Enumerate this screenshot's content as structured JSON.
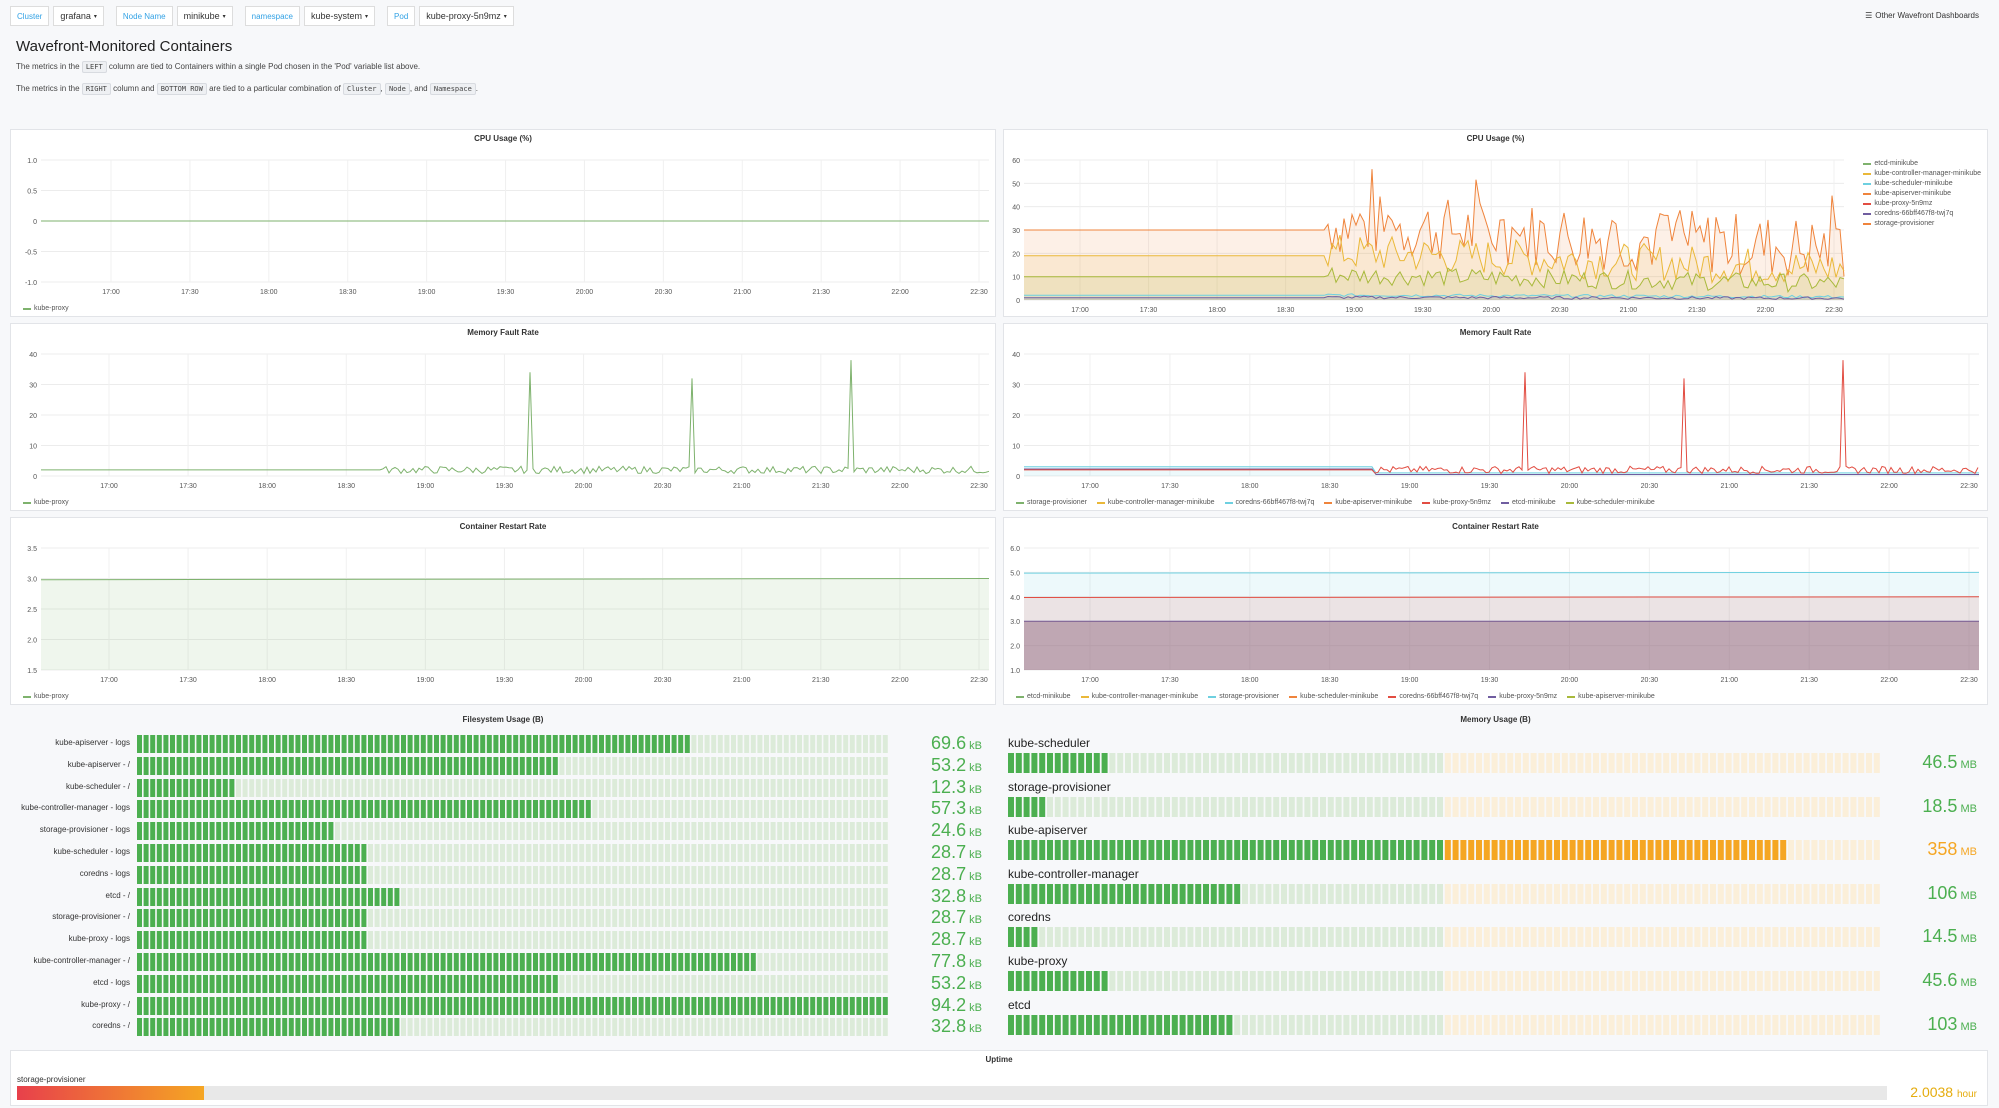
{
  "variables": [
    {
      "label": "Cluster",
      "value": "grafana"
    },
    {
      "label": "Node Name",
      "value": "minikube"
    },
    {
      "label": "namespace",
      "value": "kube-system"
    },
    {
      "label": "Pod",
      "value": "kube-proxy-5n9mz"
    }
  ],
  "other_dashboards": "Other Wavefront Dashboards",
  "intro": {
    "title": "Wavefront-Monitored Containers",
    "line1_a": "The metrics in the",
    "line1_code": "LEFT",
    "line1_b": "column are tied to Containers within a single Pod chosen in the 'Pod' variable list above.",
    "line2_a": "The metrics in the",
    "line2_code1": "RIGHT",
    "line2_b": "column and",
    "line2_code2": "BOTTOM ROW",
    "line2_c": "are tied to a particular combination of",
    "line2_code3": "Cluster",
    "line2_d": ",",
    "line2_code4": "Node",
    "line2_e": ", and",
    "line2_code5": "Namespace",
    "line2_f": "."
  },
  "time_ticks": [
    "17:00",
    "17:30",
    "18:00",
    "18:30",
    "19:00",
    "19:30",
    "20:00",
    "20:30",
    "21:00",
    "21:30",
    "22:00",
    "22:30"
  ],
  "colors": {
    "green": "#7eb26d",
    "orange": "#ef843c",
    "yellow": "#eab839",
    "blue": "#6ed0e0",
    "red": "#e24d42",
    "purple": "#705da0",
    "olive": "#a8b93b",
    "bar_green": "#4caf50",
    "bar_orange": "#f5a623",
    "uptime_amber": "#e5ac0e"
  },
  "panels": {
    "cpu_left": {
      "title": "CPU Usage (%)",
      "yticks": [
        "1.0",
        "0.5",
        "0",
        "-0.5",
        "-1.0"
      ],
      "legend": [
        "kube-proxy"
      ]
    },
    "cpu_right": {
      "title": "CPU Usage (%)",
      "yticks": [
        "60",
        "50",
        "40",
        "30",
        "20",
        "10",
        "0"
      ],
      "legend": [
        "etcd-minikube",
        "kube-controller-manager-minikube",
        "kube-scheduler-minikube",
        "kube-apiserver-minikube",
        "kube-proxy-5n9mz",
        "coredns-66bff467f8-twj7q",
        "storage-provisioner"
      ]
    },
    "mem_left": {
      "title": "Memory Fault Rate",
      "yticks": [
        "40",
        "30",
        "20",
        "10",
        "0"
      ],
      "legend": [
        "kube-proxy"
      ]
    },
    "mem_right": {
      "title": "Memory Fault Rate",
      "yticks": [
        "40",
        "30",
        "20",
        "10",
        "0"
      ],
      "legend": [
        "storage-provisioner",
        "kube-controller-manager-minikube",
        "coredns-66bff467f8-twj7q",
        "kube-apiserver-minikube",
        "kube-proxy-5n9mz",
        "etcd-minikube",
        "kube-scheduler-minikube"
      ]
    },
    "restart_left": {
      "title": "Container Restart Rate",
      "yticks": [
        "3.5",
        "3.0",
        "2.5",
        "2.0",
        "1.5"
      ],
      "legend": [
        "kube-proxy"
      ]
    },
    "restart_right": {
      "title": "Container Restart Rate",
      "yticks": [
        "6.0",
        "5.0",
        "4.0",
        "3.0",
        "2.0",
        "1.0"
      ],
      "legend": [
        "etcd-minikube",
        "kube-controller-manager-minikube",
        "storage-provisioner",
        "kube-scheduler-minikube",
        "coredns-66bff467f8-twj7q",
        "kube-proxy-5n9mz",
        "kube-apiserver-minikube"
      ]
    }
  },
  "filesystem": {
    "title": "Filesystem Usage (B)",
    "max_kb": 94.2,
    "rows": [
      {
        "label": "kube-apiserver - logs",
        "value": "69.6",
        "unit": "kB",
        "kb": 69.6
      },
      {
        "label": "kube-apiserver - /",
        "value": "53.2",
        "unit": "kB",
        "kb": 53.2
      },
      {
        "label": "kube-scheduler - /",
        "value": "12.3",
        "unit": "kB",
        "kb": 12.3
      },
      {
        "label": "kube-controller-manager - logs",
        "value": "57.3",
        "unit": "kB",
        "kb": 57.3
      },
      {
        "label": "storage-provisioner - logs",
        "value": "24.6",
        "unit": "kB",
        "kb": 24.6
      },
      {
        "label": "kube-scheduler - logs",
        "value": "28.7",
        "unit": "kB",
        "kb": 28.7
      },
      {
        "label": "coredns - logs",
        "value": "28.7",
        "unit": "kB",
        "kb": 28.7
      },
      {
        "label": "etcd - /",
        "value": "32.8",
        "unit": "kB",
        "kb": 32.8
      },
      {
        "label": "storage-provisioner - /",
        "value": "28.7",
        "unit": "kB",
        "kb": 28.7
      },
      {
        "label": "kube-proxy - logs",
        "value": "28.7",
        "unit": "kB",
        "kb": 28.7
      },
      {
        "label": "kube-controller-manager - /",
        "value": "77.8",
        "unit": "kB",
        "kb": 77.8
      },
      {
        "label": "etcd - logs",
        "value": "53.2",
        "unit": "kB",
        "kb": 53.2
      },
      {
        "label": "kube-proxy - /",
        "value": "94.2",
        "unit": "kB",
        "kb": 94.2
      },
      {
        "label": "coredns - /",
        "value": "32.8",
        "unit": "kB",
        "kb": 32.8
      }
    ]
  },
  "memory": {
    "title": "Memory Usage (B)",
    "max_mb": 400,
    "threshold_mb": 200,
    "rows": [
      {
        "label": "kube-scheduler",
        "value": "46.5",
        "unit": "MB",
        "mb": 46.5
      },
      {
        "label": "storage-provisioner",
        "value": "18.5",
        "unit": "MB",
        "mb": 18.5
      },
      {
        "label": "kube-apiserver",
        "value": "358",
        "unit": "MB",
        "mb": 358
      },
      {
        "label": "kube-controller-manager",
        "value": "106",
        "unit": "MB",
        "mb": 106
      },
      {
        "label": "coredns",
        "value": "14.5",
        "unit": "MB",
        "mb": 14.5
      },
      {
        "label": "kube-proxy",
        "value": "45.6",
        "unit": "MB",
        "mb": 45.6
      },
      {
        "label": "etcd",
        "value": "103",
        "unit": "MB",
        "mb": 103
      }
    ]
  },
  "uptime": {
    "title": "Uptime",
    "label": "storage-provisioner",
    "value": "2.0038",
    "unit": "hour",
    "fraction": 0.1
  }
}
